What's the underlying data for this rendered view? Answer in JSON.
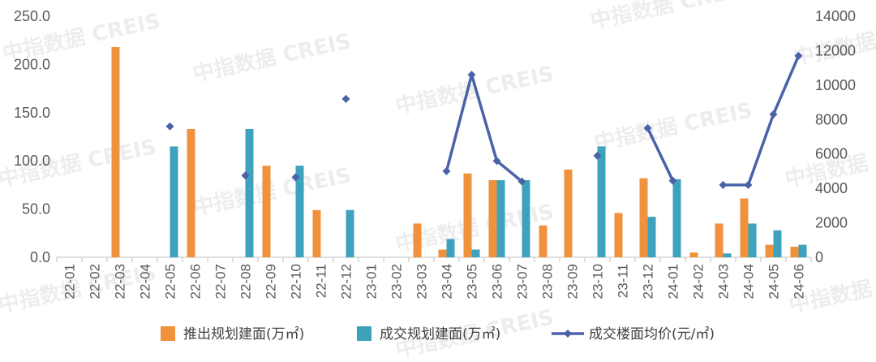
{
  "watermark": "中指数据 CREIS",
  "colors": {
    "supply_bar": "#F0913C",
    "deal_bar": "#3FA2BC",
    "price_line": "#4A63A8",
    "axis": "#bfbfbf",
    "tick_text": "#595959"
  },
  "chart_data": {
    "type": "bar",
    "grid": false,
    "legend_position": "bottom",
    "left_axis": {
      "ylim": [
        0,
        250
      ],
      "ticks": [
        "0.0",
        "50.0",
        "100.0",
        "150.0",
        "200.0",
        "250.0"
      ]
    },
    "right_axis": {
      "ylim": [
        0,
        14000
      ],
      "ticks": [
        "0",
        "2000",
        "4000",
        "6000",
        "8000",
        "10000",
        "12000",
        "14000"
      ]
    },
    "categories": [
      "22-01",
      "22-02",
      "22-03",
      "22-04",
      "22-05",
      "22-06",
      "22-07",
      "22-08",
      "22-09",
      "22-10",
      "22-11",
      "22-12",
      "23-01",
      "23-02",
      "23-03",
      "23-04",
      "23-05",
      "23-06",
      "23-07",
      "23-08",
      "23-09",
      "23-10",
      "23-11",
      "23-12",
      "24-01",
      "24-02",
      "24-03",
      "24-04",
      "24-05",
      "24-06"
    ],
    "series": [
      {
        "name": "推出规划建面(万㎡)",
        "type": "bar",
        "axis": "left",
        "values": [
          null,
          null,
          218,
          null,
          null,
          133,
          null,
          null,
          95,
          null,
          49,
          null,
          null,
          null,
          35,
          8,
          87,
          80,
          null,
          33,
          91,
          null,
          46,
          82,
          null,
          5,
          35,
          61,
          13,
          11
        ]
      },
      {
        "name": "成交规划建面(万㎡)",
        "type": "bar",
        "axis": "left",
        "values": [
          null,
          null,
          null,
          null,
          115,
          null,
          null,
          133,
          null,
          95,
          null,
          49,
          null,
          null,
          null,
          19,
          8,
          80,
          80,
          null,
          null,
          115,
          null,
          42,
          81,
          null,
          4,
          35,
          28,
          13
        ]
      },
      {
        "name": "成交楼面均价(元/㎡)",
        "type": "line",
        "axis": "right",
        "values": [
          null,
          null,
          null,
          null,
          7600,
          null,
          null,
          4750,
          null,
          4650,
          null,
          9200,
          null,
          null,
          null,
          5000,
          10600,
          5600,
          4400,
          null,
          null,
          5900,
          null,
          7500,
          4450,
          null,
          4200,
          4200,
          8300,
          11700
        ]
      }
    ]
  }
}
